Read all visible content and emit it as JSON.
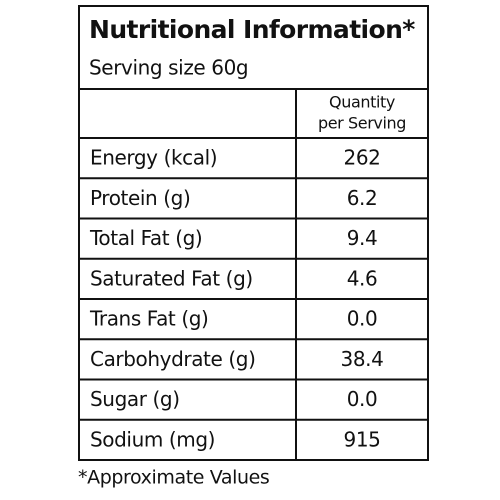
{
  "header": {
    "title": "Nutritional Information*",
    "serving": "Serving size 60g"
  },
  "table": {
    "quantity_header": [
      "Quantity",
      "per Serving"
    ],
    "rows": [
      [
        "Energy (kcal)",
        "262"
      ],
      [
        "Protein (g)",
        "6.2"
      ],
      [
        "Total Fat (g)",
        "9.4"
      ],
      [
        "Saturated Fat (g)",
        "4.6"
      ],
      [
        "Trans Fat (g)",
        "0.0"
      ],
      [
        "Carbohydrate (g)",
        "38.4"
      ],
      [
        "Sugar (g)",
        "0.0"
      ],
      [
        "Sodium (mg)",
        "915"
      ]
    ]
  },
  "footnote": "*Approximate Values"
}
